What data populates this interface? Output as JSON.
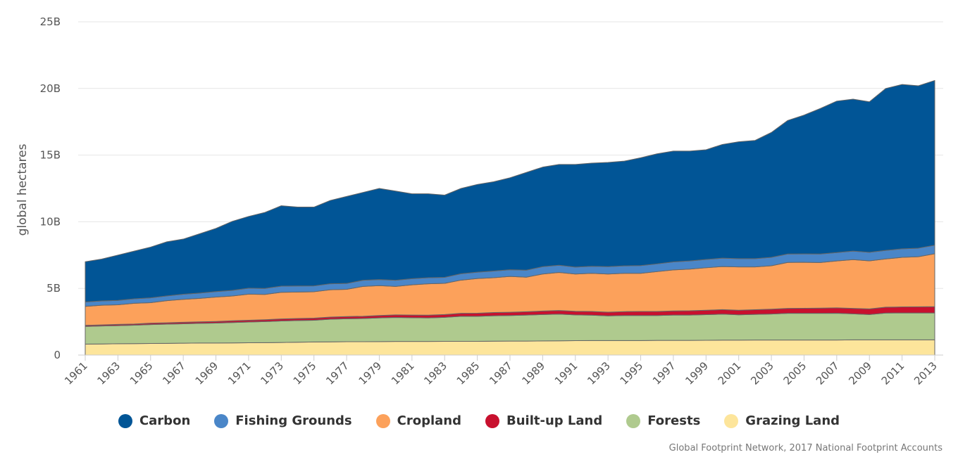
{
  "chart_data": {
    "type": "area",
    "stacked": true,
    "ylabel": "global hectares",
    "ylim": [
      0,
      25000000000
    ],
    "yticks": [
      "0",
      "5B",
      "10B",
      "15B",
      "20B",
      "25B"
    ],
    "grid": true,
    "legend_position": "bottom",
    "x": [
      1961,
      1962,
      1963,
      1964,
      1965,
      1966,
      1967,
      1968,
      1969,
      1970,
      1971,
      1972,
      1973,
      1974,
      1975,
      1976,
      1977,
      1978,
      1979,
      1980,
      1981,
      1982,
      1983,
      1984,
      1985,
      1986,
      1987,
      1988,
      1989,
      1990,
      1991,
      1992,
      1993,
      1994,
      1995,
      1996,
      1997,
      1998,
      1999,
      2000,
      2001,
      2002,
      2003,
      2004,
      2005,
      2006,
      2007,
      2008,
      2009,
      2010,
      2011,
      2012,
      2013
    ],
    "xticks": [
      "1961",
      "1963",
      "1965",
      "1967",
      "1969",
      "1971",
      "1973",
      "1975",
      "1977",
      "1979",
      "1981",
      "1983",
      "1985",
      "1987",
      "1989",
      "1991",
      "1993",
      "1995",
      "1997",
      "1999",
      "2001",
      "2003",
      "2005",
      "2007",
      "2009",
      "2011",
      "2013"
    ],
    "series": [
      {
        "name": "Grazing Land",
        "color": "#fde59b",
        "values": [
          0.82,
          0.83,
          0.85,
          0.86,
          0.87,
          0.88,
          0.89,
          0.9,
          0.9,
          0.91,
          0.92,
          0.93,
          0.94,
          0.96,
          0.98,
          0.99,
          1.0,
          1.0,
          1.01,
          1.02,
          1.02,
          1.02,
          1.03,
          1.03,
          1.03,
          1.04,
          1.05,
          1.05,
          1.06,
          1.07,
          1.08,
          1.09,
          1.09,
          1.09,
          1.09,
          1.1,
          1.1,
          1.1,
          1.11,
          1.12,
          1.12,
          1.13,
          1.13,
          1.13,
          1.13,
          1.13,
          1.13,
          1.14,
          1.14,
          1.14,
          1.14,
          1.14,
          1.14
        ]
      },
      {
        "name": "Forests",
        "color": "#afca8e",
        "values": [
          1.33,
          1.35,
          1.36,
          1.38,
          1.42,
          1.44,
          1.46,
          1.48,
          1.5,
          1.53,
          1.56,
          1.58,
          1.62,
          1.63,
          1.63,
          1.7,
          1.72,
          1.74,
          1.78,
          1.8,
          1.78,
          1.77,
          1.8,
          1.88,
          1.88,
          1.91,
          1.92,
          1.95,
          1.98,
          2.0,
          1.93,
          1.9,
          1.85,
          1.88,
          1.88,
          1.87,
          1.9,
          1.9,
          1.92,
          1.95,
          1.9,
          1.92,
          1.95,
          2.0,
          2.0,
          2.0,
          2.01,
          1.95,
          1.9,
          2.01,
          2.02,
          2.02,
          2.02
        ]
      },
      {
        "name": "Built-up Land",
        "color": "#c8102e",
        "values": [
          0.08,
          0.08,
          0.09,
          0.09,
          0.1,
          0.1,
          0.11,
          0.11,
          0.12,
          0.13,
          0.13,
          0.14,
          0.15,
          0.15,
          0.16,
          0.16,
          0.17,
          0.17,
          0.18,
          0.19,
          0.2,
          0.2,
          0.21,
          0.22,
          0.23,
          0.24,
          0.24,
          0.25,
          0.26,
          0.27,
          0.27,
          0.28,
          0.28,
          0.29,
          0.3,
          0.3,
          0.31,
          0.32,
          0.33,
          0.34,
          0.34,
          0.35,
          0.36,
          0.37,
          0.38,
          0.39,
          0.4,
          0.41,
          0.42,
          0.44,
          0.45,
          0.46,
          0.47
        ]
      },
      {
        "name": "Cropland",
        "color": "#fca15b",
        "values": [
          1.42,
          1.48,
          1.47,
          1.55,
          1.54,
          1.66,
          1.72,
          1.76,
          1.83,
          1.86,
          1.96,
          1.9,
          2.0,
          1.99,
          1.98,
          2.05,
          2.04,
          2.24,
          2.24,
          2.14,
          2.27,
          2.36,
          2.34,
          2.49,
          2.6,
          2.61,
          2.69,
          2.59,
          2.78,
          2.86,
          2.8,
          2.86,
          2.86,
          2.87,
          2.86,
          2.99,
          3.08,
          3.13,
          3.19,
          3.23,
          3.25,
          3.21,
          3.26,
          3.45,
          3.45,
          3.42,
          3.52,
          3.66,
          3.61,
          3.62,
          3.72,
          3.76,
          3.97
        ]
      },
      {
        "name": "Fishing Grounds",
        "color": "#4a86c8",
        "values": [
          0.33,
          0.32,
          0.33,
          0.34,
          0.36,
          0.36,
          0.38,
          0.4,
          0.41,
          0.42,
          0.45,
          0.45,
          0.46,
          0.45,
          0.44,
          0.45,
          0.44,
          0.46,
          0.45,
          0.46,
          0.46,
          0.45,
          0.45,
          0.48,
          0.48,
          0.5,
          0.5,
          0.53,
          0.55,
          0.54,
          0.52,
          0.53,
          0.55,
          0.56,
          0.58,
          0.58,
          0.6,
          0.61,
          0.62,
          0.63,
          0.62,
          0.62,
          0.63,
          0.63,
          0.63,
          0.64,
          0.63,
          0.64,
          0.64,
          0.64,
          0.64,
          0.64,
          0.64
        ]
      },
      {
        "name": "Carbon",
        "color": "#015596",
        "values": [
          3.02,
          3.14,
          3.4,
          3.58,
          3.81,
          4.06,
          4.14,
          4.45,
          4.74,
          5.18,
          5.38,
          5.7,
          6.03,
          5.92,
          5.91,
          6.25,
          6.53,
          6.59,
          6.84,
          6.69,
          6.37,
          6.3,
          6.17,
          6.4,
          6.58,
          6.7,
          6.9,
          7.33,
          7.47,
          7.56,
          7.7,
          7.74,
          7.82,
          7.86,
          8.09,
          8.26,
          8.31,
          8.24,
          8.23,
          8.53,
          8.77,
          8.87,
          9.37,
          10.02,
          10.41,
          10.92,
          11.36,
          11.4,
          11.29,
          12.15,
          12.33,
          12.18,
          12.36
        ]
      }
    ]
  },
  "legend": {
    "items": [
      {
        "label": "Carbon",
        "color": "#015596"
      },
      {
        "label": "Fishing Grounds",
        "color": "#4a86c8"
      },
      {
        "label": "Cropland",
        "color": "#fca15b"
      },
      {
        "label": "Built-up Land",
        "color": "#c8102e"
      },
      {
        "label": "Forests",
        "color": "#afca8e"
      },
      {
        "label": "Grazing Land",
        "color": "#fde59b"
      }
    ]
  },
  "credit": "Global Footprint Network, 2017 National Footprint Accounts"
}
